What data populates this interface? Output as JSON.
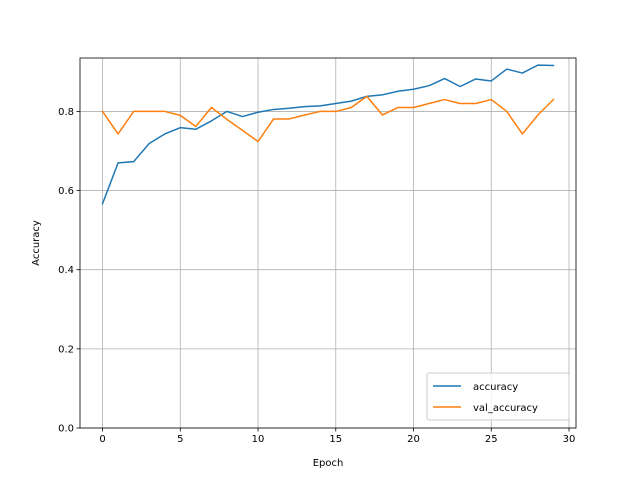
{
  "chart_data": {
    "type": "line",
    "xlabel": "Epoch",
    "ylabel": "Accuracy",
    "xlim": [
      -1.45,
      30.45
    ],
    "ylim": [
      0,
      0.935
    ],
    "xticks": [
      0,
      5,
      10,
      15,
      20,
      25,
      30
    ],
    "xtick_labels": [
      "0",
      "5",
      "10",
      "15",
      "20",
      "25",
      "30"
    ],
    "yticks": [
      0.0,
      0.2,
      0.4,
      0.6,
      0.8
    ],
    "ytick_labels": [
      "0.0",
      "0.2",
      "0.4",
      "0.6",
      "0.8"
    ],
    "grid": true,
    "legend_position": "lower-right",
    "x": [
      0,
      1,
      2,
      3,
      4,
      5,
      6,
      7,
      8,
      9,
      10,
      11,
      12,
      13,
      14,
      15,
      16,
      17,
      18,
      19,
      20,
      21,
      22,
      23,
      24,
      25,
      26,
      27,
      28,
      29
    ],
    "series": [
      {
        "name": "accuracy",
        "color": "#1f77b4",
        "values": [
          0.567,
          0.67,
          0.673,
          0.719,
          0.743,
          0.759,
          0.755,
          0.776,
          0.8,
          0.787,
          0.798,
          0.805,
          0.808,
          0.812,
          0.814,
          0.82,
          0.826,
          0.838,
          0.842,
          0.851,
          0.856,
          0.865,
          0.883,
          0.863,
          0.882,
          0.877,
          0.907,
          0.897,
          0.917,
          0.916
        ]
      },
      {
        "name": "val_accuracy",
        "color": "#ff7f0e",
        "values": [
          0.8,
          0.743,
          0.8,
          0.8,
          0.8,
          0.79,
          0.762,
          0.81,
          0.78,
          0.752,
          0.724,
          0.781,
          0.781,
          0.791,
          0.8,
          0.8,
          0.81,
          0.838,
          0.791,
          0.81,
          0.81,
          0.82,
          0.83,
          0.82,
          0.82,
          0.83,
          0.8,
          0.743,
          0.791,
          0.83
        ]
      }
    ]
  }
}
